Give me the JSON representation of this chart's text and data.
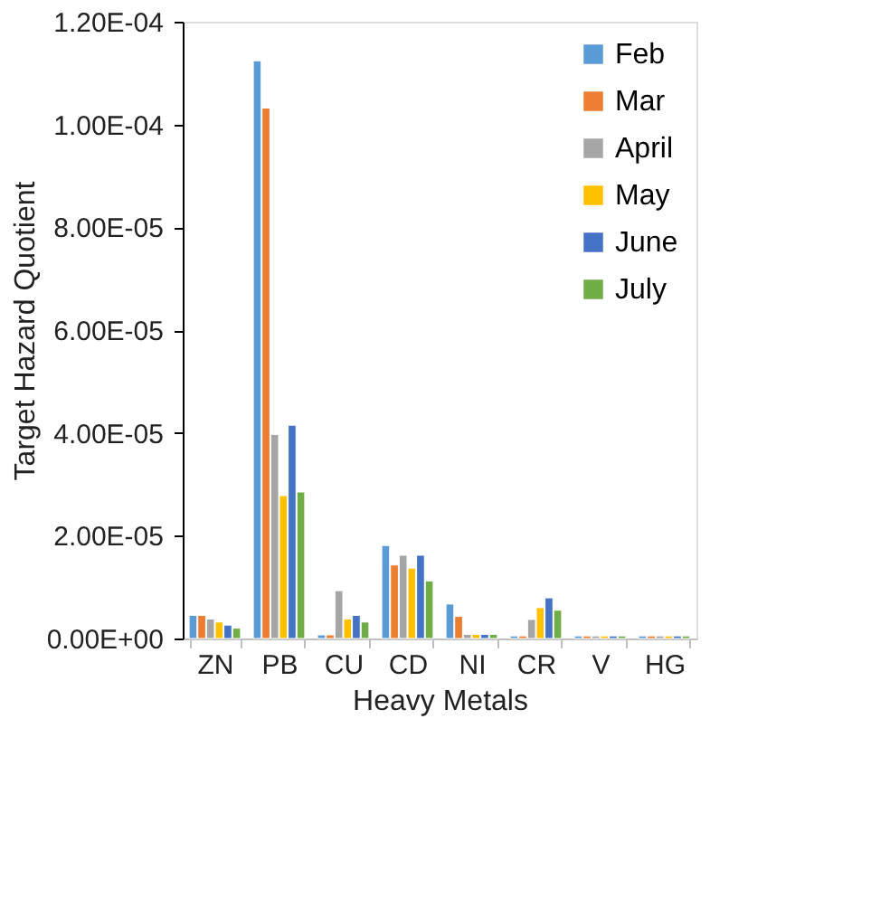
{
  "chart_data": {
    "type": "bar",
    "xlabel": "Heavy Metals",
    "ylabel": "Target Hazard Quotient",
    "categories": [
      "ZN",
      "PB",
      "CU",
      "CD",
      "NI",
      "CR",
      "V",
      "HG"
    ],
    "series": [
      {
        "name": "Feb",
        "color": "#5b9bd5",
        "values": [
          4.5e-06,
          0.0001124,
          7e-07,
          1.81e-05,
          6.7e-06,
          5e-07,
          5e-07,
          5e-07
        ]
      },
      {
        "name": "Mar",
        "color": "#ed7d31",
        "values": [
          4.5e-06,
          0.0001032,
          7e-07,
          1.43e-05,
          4.3e-06,
          5e-07,
          5e-07,
          5e-07
        ]
      },
      {
        "name": "April",
        "color": "#a5a5a5",
        "values": [
          3.8e-06,
          3.97e-05,
          9.3e-06,
          1.62e-05,
          8e-07,
          3.7e-06,
          5e-07,
          5e-07
        ]
      },
      {
        "name": "May",
        "color": "#ffc000",
        "values": [
          3.2e-06,
          2.78e-05,
          3.8e-06,
          1.37e-05,
          8e-07,
          6e-06,
          5e-07,
          5e-07
        ]
      },
      {
        "name": "June",
        "color": "#4472c4",
        "values": [
          2.6e-06,
          4.15e-05,
          4.5e-06,
          1.62e-05,
          8e-07,
          7.9e-06,
          5e-07,
          5e-07
        ]
      },
      {
        "name": "July",
        "color": "#70ad47",
        "values": [
          2e-06,
          2.85e-05,
          3.2e-06,
          1.12e-05,
          8e-07,
          5.5e-06,
          5e-07,
          5e-07
        ]
      }
    ],
    "ylim": [
      0,
      0.00012
    ],
    "yticks": [
      {
        "value": 0,
        "label": "0.00E+00"
      },
      {
        "value": 2e-05,
        "label": "2.00E-05"
      },
      {
        "value": 4e-05,
        "label": "4.00E-05"
      },
      {
        "value": 6e-05,
        "label": "6.00E-05"
      },
      {
        "value": 8e-05,
        "label": "8.00E-05"
      },
      {
        "value": 0.0001,
        "label": "1.00E-04"
      },
      {
        "value": 0.00012,
        "label": "1.20E-04"
      }
    ],
    "grid": false,
    "legend": "top right"
  }
}
